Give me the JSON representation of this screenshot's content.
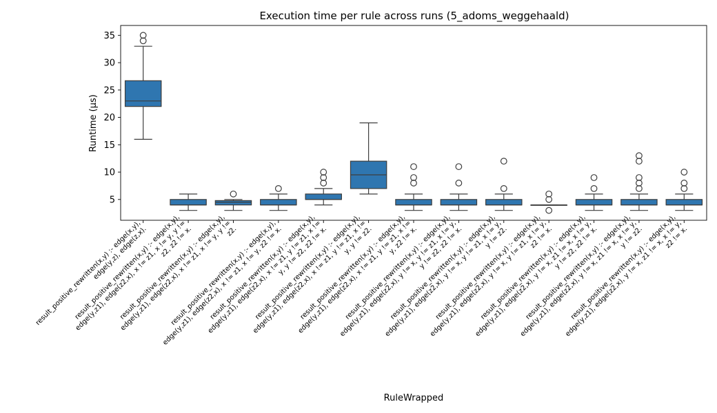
{
  "chart_data": {
    "type": "box",
    "title": "Execution time per rule across runs (5_adoms_weggehaald)",
    "xlabel": "RuleWrapped",
    "ylabel": "Runtime (µs)",
    "ylim": [
      1.2,
      36.8
    ],
    "yticks": [
      5,
      10,
      15,
      20,
      25,
      30,
      35
    ],
    "grid": false,
    "box_color": "#2f76b0",
    "categories": [
      [
        "result_positive_rewritten(x,y) :-     edge(x,y),",
        "edge(y,z),     edge(z,x)."
      ],
      [
        "result_positive_rewritten(x,y) :-     edge(x,y),",
        "edge(y,z1),   edge(z2,x),   x != z1,   x != y,   y !=",
        "z2,   z2 != x."
      ],
      [
        "result_positive_rewritten(x,y) :-     edge(x,y),",
        "edge(y,z1),   edge(z2,x),   x != z1,   x != y,   y !=",
        "z2."
      ],
      [
        "result_positive_rewritten(x,y) :-     edge(x,y),",
        "edge(y,z1),   edge(z2,x),   x != z1,   x != y,   z2 != x."
      ],
      [
        "result_positive_rewritten(x,y) :-     edge(x,y),",
        "edge(y,z1),   edge(z2,x),   x != z1,   y != z1,   x !=",
        "y,   y != z2,   z2 != x."
      ],
      [
        "result_positive_rewritten(x,y) :-     edge(x,y),",
        "edge(y,z1),   edge(z2,x),   x != z1,   y != z1,   x !=",
        "y,   y != z2."
      ],
      [
        "result_positive_rewritten(x,y) :-     edge(x,y),",
        "edge(y,z1),   edge(z2,x),   x != z1,   y != z1,   x !=",
        "y,   z2 != x."
      ],
      [
        "result_positive_rewritten(x,y) :-     edge(x,y),",
        "edge(y,z1),   edge(z2,x),   y != x,   y != z1,   x != y,",
        "y != z2,   z2 != x."
      ],
      [
        "result_positive_rewritten(x,y) :-     edge(x,y),",
        "edge(y,z1),   edge(z2,x),   y != x,   y != z1,   x != y,",
        "y != z2."
      ],
      [
        "result_positive_rewritten(x,y) :-     edge(x,y),",
        "edge(y,z1),   edge(z2,x),   y != x,   y != z1,   x != y,",
        "z2 != x."
      ],
      [
        "result_positive_rewritten(x,y) :-     edge(x,y),",
        "edge(y,z1),   edge(z2,x),   y != x,   z1 != x,   x != y,",
        "y != z2,   z2 != x."
      ],
      [
        "result_positive_rewritten(x,y) :-     edge(x,y),",
        "edge(y,z1),   edge(z2,x),   y != x,   z1 != x,   x != y,",
        "y != z2."
      ],
      [
        "result_positive_rewritten(x,y) :-     edge(x,y),",
        "edge(y,z1),   edge(z2,x),   y != x,   z1 != x,   x != y,",
        "z2 != x."
      ]
    ],
    "boxes": [
      {
        "whislo": 16,
        "q1": 22,
        "med": 23,
        "q3": 26.7,
        "whishi": 33,
        "fliers": [
          34,
          35
        ]
      },
      {
        "whislo": 3,
        "q1": 4,
        "med": 4,
        "q3": 5,
        "whishi": 6,
        "fliers": []
      },
      {
        "whislo": 3,
        "q1": 4,
        "med": 4.5,
        "q3": 4.8,
        "whishi": 5,
        "fliers": [
          6
        ]
      },
      {
        "whislo": 3,
        "q1": 4,
        "med": 4,
        "q3": 5,
        "whishi": 6,
        "fliers": [
          7
        ]
      },
      {
        "whislo": 4,
        "q1": 5,
        "med": 5,
        "q3": 6,
        "whishi": 7,
        "fliers": [
          8,
          9,
          10
        ]
      },
      {
        "whislo": 6,
        "q1": 7,
        "med": 9.5,
        "q3": 12,
        "whishi": 19,
        "fliers": []
      },
      {
        "whislo": 3,
        "q1": 4,
        "med": 4,
        "q3": 5,
        "whishi": 6,
        "fliers": [
          8,
          9,
          11
        ]
      },
      {
        "whislo": 3,
        "q1": 4,
        "med": 4,
        "q3": 5,
        "whishi": 6,
        "fliers": [
          8,
          11
        ]
      },
      {
        "whislo": 3,
        "q1": 4,
        "med": 4,
        "q3": 5,
        "whishi": 6,
        "fliers": [
          7,
          12
        ]
      },
      {
        "whislo": 4,
        "q1": 4,
        "med": 4,
        "q3": 4,
        "whishi": 4,
        "fliers": [
          3,
          5,
          6
        ]
      },
      {
        "whislo": 3,
        "q1": 4,
        "med": 4,
        "q3": 5,
        "whishi": 6,
        "fliers": [
          7,
          9
        ]
      },
      {
        "whislo": 3,
        "q1": 4,
        "med": 4,
        "q3": 5,
        "whishi": 6,
        "fliers": [
          7,
          8,
          9,
          12,
          13
        ]
      },
      {
        "whislo": 3,
        "q1": 4,
        "med": 4,
        "q3": 5,
        "whishi": 6,
        "fliers": [
          7,
          8,
          10
        ]
      }
    ]
  }
}
